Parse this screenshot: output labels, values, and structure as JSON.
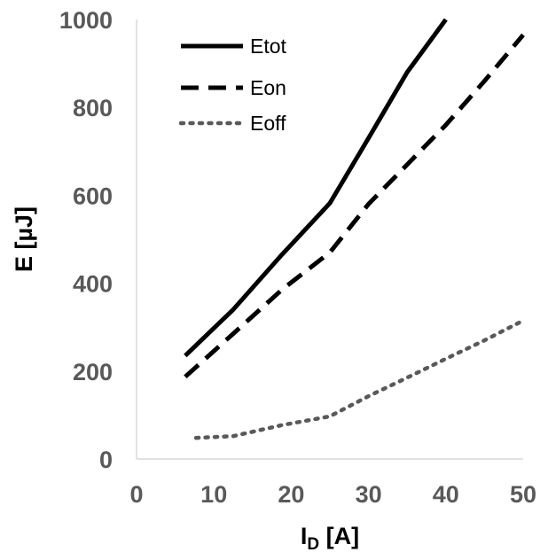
{
  "chart_data": {
    "type": "line",
    "title": "",
    "xlabel_main": "I",
    "xlabel_sub": "D",
    "xlabel_unit": " [A]",
    "ylabel": "E  [µJ]",
    "xlim": [
      0,
      50
    ],
    "ylim": [
      0,
      1000
    ],
    "xticks": [
      0,
      10,
      20,
      30,
      40,
      50
    ],
    "yticks": [
      0,
      200,
      400,
      600,
      800,
      1000
    ],
    "grid": false,
    "legend_position": "top-left",
    "series": [
      {
        "name": "Etot",
        "style": "solid",
        "color": "#000000",
        "points": [
          [
            6.3,
            235
          ],
          [
            12.5,
            340
          ],
          [
            18.8,
            465
          ],
          [
            25,
            582
          ],
          [
            30,
            730
          ],
          [
            35,
            880
          ],
          [
            40,
            1000
          ]
        ]
      },
      {
        "name": "Eon",
        "style": "dashed",
        "color": "#000000",
        "points": [
          [
            6.3,
            187
          ],
          [
            12.5,
            285
          ],
          [
            18.8,
            385
          ],
          [
            25,
            470
          ],
          [
            30,
            580
          ],
          [
            35,
            670
          ],
          [
            40,
            760
          ],
          [
            45,
            860
          ],
          [
            50,
            965
          ]
        ]
      },
      {
        "name": "Eoff",
        "style": "dotted",
        "color": "#595959",
        "points": [
          [
            7.7,
            48
          ],
          [
            12.5,
            52
          ],
          [
            18.8,
            77
          ],
          [
            25,
            97
          ],
          [
            30,
            143
          ],
          [
            35,
            185
          ],
          [
            40,
            228
          ],
          [
            45,
            270
          ],
          [
            50,
            315
          ]
        ]
      }
    ]
  }
}
